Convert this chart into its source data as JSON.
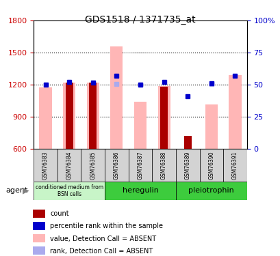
{
  "title": "GDS1518 / 1371735_at",
  "samples": [
    "GSM76383",
    "GSM76384",
    "GSM76385",
    "GSM76386",
    "GSM76387",
    "GSM76388",
    "GSM76389",
    "GSM76390",
    "GSM76391"
  ],
  "pink_values": [
    1170,
    1220,
    1215,
    1560,
    1040,
    1185,
    null,
    1010,
    1290
  ],
  "red_values": [
    null,
    1220,
    1215,
    null,
    null,
    1180,
    720,
    null,
    null
  ],
  "blue_squares": [
    1200,
    1225,
    1215,
    1280,
    1200,
    1225,
    1090,
    1210,
    1280
  ],
  "lavender_squares": [
    1200,
    null,
    null,
    1205,
    1200,
    null,
    null,
    1205,
    null
  ],
  "ylim_left": [
    600,
    1800
  ],
  "ylim_right": [
    0,
    100
  ],
  "yticks_left": [
    600,
    900,
    1200,
    1500,
    1800
  ],
  "yticks_right": [
    0,
    25,
    50,
    75,
    100
  ],
  "groups": [
    {
      "label": "conditioned medium from\nBSN cells",
      "start": 0,
      "end": 3,
      "color": "#90ee90"
    },
    {
      "label": "heregulin",
      "start": 3,
      "end": 6,
      "color": "#3dcc3d"
    },
    {
      "label": "pleiotrophin",
      "start": 6,
      "end": 9,
      "color": "#3dcc3d"
    }
  ],
  "pink_color": "#ffb6b6",
  "red_color": "#aa0000",
  "blue_color": "#0000cc",
  "lavender_color": "#aaaaee",
  "bar_width": 0.35,
  "plot_bg": "#ffffff",
  "left_axis_color": "#cc0000",
  "right_axis_color": "#0000cc"
}
